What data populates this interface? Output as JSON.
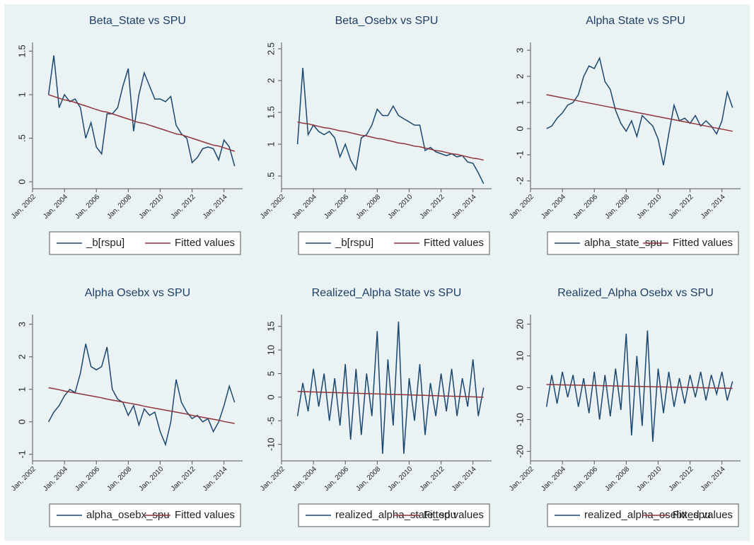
{
  "chart_data": [
    {
      "type": "line",
      "title": "Beta_State vs SPU",
      "x": [
        "2003-01",
        "2003-05",
        "2003-09",
        "2004-01",
        "2004-05",
        "2004-09",
        "2005-01",
        "2005-05",
        "2005-09",
        "2006-01",
        "2006-05",
        "2006-09",
        "2007-01",
        "2007-05",
        "2007-09",
        "2008-01",
        "2008-05",
        "2008-09",
        "2009-01",
        "2009-05",
        "2009-09",
        "2010-01",
        "2010-05",
        "2010-09",
        "2011-01",
        "2011-05",
        "2011-09",
        "2012-01",
        "2012-05",
        "2012-09",
        "2013-01",
        "2013-05",
        "2013-09",
        "2014-01",
        "2014-05",
        "2014-09"
      ],
      "series": [
        {
          "name": "_b[rspu]",
          "color": "#1a476f",
          "values": [
            1.0,
            1.45,
            0.85,
            1.0,
            0.92,
            0.95,
            0.85,
            0.5,
            0.68,
            0.4,
            0.32,
            0.78,
            0.78,
            0.85,
            1.1,
            1.3,
            0.58,
            1.0,
            1.25,
            1.1,
            0.95,
            0.95,
            0.92,
            0.98,
            0.65,
            0.55,
            0.5,
            0.22,
            0.28,
            0.38,
            0.4,
            0.38,
            0.25,
            0.48,
            0.4,
            0.18
          ]
        },
        {
          "name": "Fitted values",
          "color": "#90353b",
          "values": [
            1.0,
            0.98,
            0.96,
            0.94,
            0.93,
            0.91,
            0.89,
            0.87,
            0.85,
            0.83,
            0.81,
            0.8,
            0.78,
            0.76,
            0.74,
            0.72,
            0.7,
            0.68,
            0.67,
            0.65,
            0.63,
            0.61,
            0.59,
            0.57,
            0.55,
            0.54,
            0.52,
            0.5,
            0.48,
            0.46,
            0.44,
            0.42,
            0.41,
            0.39,
            0.37,
            0.35
          ]
        }
      ],
      "xlim": [
        "2002-01",
        "2015-03"
      ],
      "xticks": [
        {
          "value": "2002-01",
          "label": "Jan, 2002"
        },
        {
          "value": "2004-01",
          "label": "Jan, 2004"
        },
        {
          "value": "2006-01",
          "label": "Jan, 2006"
        },
        {
          "value": "2008-01",
          "label": "Jan, 2008"
        },
        {
          "value": "2010-01",
          "label": "Jan, 2010"
        },
        {
          "value": "2012-01",
          "label": "Jan, 2012"
        },
        {
          "value": "2014-01",
          "label": "Jan, 2014"
        }
      ],
      "ylim": [
        -0.08,
        1.6
      ],
      "yticks": [
        0,
        {
          "value": 0.5,
          "label": ".5"
        },
        1,
        1.5
      ],
      "grid": false,
      "legend": "bottom"
    },
    {
      "type": "line",
      "title": "Beta_Osebx vs SPU",
      "x": [
        "2003-01",
        "2003-05",
        "2003-09",
        "2004-01",
        "2004-05",
        "2004-09",
        "2005-01",
        "2005-05",
        "2005-09",
        "2006-01",
        "2006-05",
        "2006-09",
        "2007-01",
        "2007-05",
        "2007-09",
        "2008-01",
        "2008-05",
        "2008-09",
        "2009-01",
        "2009-05",
        "2009-09",
        "2010-01",
        "2010-05",
        "2010-09",
        "2011-01",
        "2011-05",
        "2011-09",
        "2012-01",
        "2012-05",
        "2012-09",
        "2013-01",
        "2013-05",
        "2013-09",
        "2014-01",
        "2014-05",
        "2014-09"
      ],
      "series": [
        {
          "name": "_b[rspu]",
          "color": "#1a476f",
          "values": [
            1.0,
            2.2,
            1.15,
            1.3,
            1.2,
            1.15,
            1.2,
            1.1,
            0.8,
            1.0,
            0.75,
            0.6,
            1.1,
            1.15,
            1.3,
            1.55,
            1.45,
            1.45,
            1.6,
            1.45,
            1.4,
            1.35,
            1.3,
            1.3,
            0.9,
            0.95,
            0.88,
            0.85,
            0.82,
            0.85,
            0.8,
            0.82,
            0.72,
            0.7,
            0.55,
            0.38
          ]
        },
        {
          "name": "Fitted values",
          "color": "#90353b",
          "values": [
            1.35,
            1.33,
            1.32,
            1.3,
            1.28,
            1.26,
            1.25,
            1.23,
            1.21,
            1.2,
            1.18,
            1.16,
            1.14,
            1.13,
            1.11,
            1.09,
            1.08,
            1.06,
            1.04,
            1.02,
            1.01,
            0.99,
            0.97,
            0.96,
            0.94,
            0.92,
            0.9,
            0.89,
            0.87,
            0.85,
            0.84,
            0.82,
            0.8,
            0.78,
            0.77,
            0.75
          ]
        }
      ],
      "xlim": [
        "2002-01",
        "2015-03"
      ],
      "xticks": [
        {
          "value": "2002-01",
          "label": "Jan, 2002"
        },
        {
          "value": "2004-01",
          "label": "Jan, 2004"
        },
        {
          "value": "2006-01",
          "label": "Jan, 2006"
        },
        {
          "value": "2008-01",
          "label": "Jan, 2008"
        },
        {
          "value": "2010-01",
          "label": "Jan, 2010"
        },
        {
          "value": "2012-01",
          "label": "Jan, 2012"
        },
        {
          "value": "2014-01",
          "label": "Jan, 2014"
        }
      ],
      "ylim": [
        0.3,
        2.6
      ],
      "yticks": [
        {
          "value": 0.5,
          "label": ".5"
        },
        1,
        1.5,
        2,
        2.5
      ],
      "grid": false,
      "legend": "bottom"
    },
    {
      "type": "line",
      "title": "Alpha State vs SPU",
      "x": [
        "2003-01",
        "2003-05",
        "2003-09",
        "2004-01",
        "2004-05",
        "2004-09",
        "2005-01",
        "2005-05",
        "2005-09",
        "2006-01",
        "2006-05",
        "2006-09",
        "2007-01",
        "2007-05",
        "2007-09",
        "2008-01",
        "2008-05",
        "2008-09",
        "2009-01",
        "2009-05",
        "2009-09",
        "2010-01",
        "2010-05",
        "2010-09",
        "2011-01",
        "2011-05",
        "2011-09",
        "2012-01",
        "2012-05",
        "2012-09",
        "2013-01",
        "2013-05",
        "2013-09",
        "2014-01",
        "2014-05",
        "2014-09"
      ],
      "series": [
        {
          "name": "alpha_state_spu",
          "color": "#1a476f",
          "values": [
            0,
            0.1,
            0.4,
            0.6,
            0.9,
            1.0,
            1.3,
            2.0,
            2.4,
            2.3,
            2.7,
            1.8,
            1.5,
            0.7,
            0.2,
            -0.1,
            0.3,
            -0.3,
            0.5,
            0.3,
            0.1,
            -0.4,
            -1.4,
            -0.2,
            0.9,
            0.3,
            0.4,
            0.2,
            0.5,
            0.1,
            0.3,
            0.1,
            -0.2,
            0.3,
            1.4,
            0.8
          ]
        },
        {
          "name": "Fitted values",
          "color": "#90353b",
          "values": [
            1.3,
            1.26,
            1.22,
            1.18,
            1.14,
            1.1,
            1.06,
            1.02,
            0.98,
            0.94,
            0.9,
            0.86,
            0.82,
            0.78,
            0.74,
            0.7,
            0.66,
            0.62,
            0.58,
            0.54,
            0.5,
            0.46,
            0.42,
            0.38,
            0.34,
            0.3,
            0.26,
            0.22,
            0.18,
            0.14,
            0.1,
            0.06,
            0.02,
            -0.02,
            -0.06,
            -0.1
          ]
        }
      ],
      "xlim": [
        "2002-01",
        "2015-03"
      ],
      "xticks": [
        {
          "value": "2002-01",
          "label": "Jan, 2002"
        },
        {
          "value": "2004-01",
          "label": "Jan, 2004"
        },
        {
          "value": "2006-01",
          "label": "Jan, 2006"
        },
        {
          "value": "2008-01",
          "label": "Jan, 2008"
        },
        {
          "value": "2010-01",
          "label": "Jan, 2010"
        },
        {
          "value": "2012-01",
          "label": "Jan, 2012"
        },
        {
          "value": "2014-01",
          "label": "Jan, 2014"
        }
      ],
      "ylim": [
        -2.3,
        3.3
      ],
      "yticks": [
        -2,
        -1,
        0,
        1,
        2,
        3
      ],
      "grid": false,
      "legend": "bottom"
    },
    {
      "type": "line",
      "title": "Alpha Osebx vs SPU",
      "x": [
        "2003-01",
        "2003-05",
        "2003-09",
        "2004-01",
        "2004-05",
        "2004-09",
        "2005-01",
        "2005-05",
        "2005-09",
        "2006-01",
        "2006-05",
        "2006-09",
        "2007-01",
        "2007-05",
        "2007-09",
        "2008-01",
        "2008-05",
        "2008-09",
        "2009-01",
        "2009-05",
        "2009-09",
        "2010-01",
        "2010-05",
        "2010-09",
        "2011-01",
        "2011-05",
        "2011-09",
        "2012-01",
        "2012-05",
        "2012-09",
        "2013-01",
        "2013-05",
        "2013-09",
        "2014-01",
        "2014-05",
        "2014-09"
      ],
      "series": [
        {
          "name": "alpha_osebx_spu",
          "color": "#1a476f",
          "values": [
            0,
            0.3,
            0.5,
            0.8,
            1.0,
            0.9,
            1.5,
            2.4,
            1.7,
            1.6,
            1.7,
            2.3,
            1.0,
            0.7,
            0.6,
            0.2,
            0.5,
            -0.1,
            0.4,
            0.2,
            0.3,
            -0.3,
            -0.7,
            0.0,
            1.3,
            0.6,
            0.3,
            0.1,
            0.2,
            0.0,
            0.1,
            -0.3,
            0.0,
            0.5,
            1.1,
            0.6
          ]
        },
        {
          "name": "Fitted values",
          "color": "#90353b",
          "values": [
            1.05,
            1.02,
            0.99,
            0.95,
            0.92,
            0.89,
            0.86,
            0.83,
            0.8,
            0.77,
            0.74,
            0.7,
            0.67,
            0.64,
            0.61,
            0.58,
            0.55,
            0.52,
            0.48,
            0.45,
            0.42,
            0.39,
            0.36,
            0.33,
            0.3,
            0.27,
            0.24,
            0.2,
            0.17,
            0.14,
            0.11,
            0.08,
            0.05,
            0.01,
            -0.02,
            -0.05
          ]
        }
      ],
      "xlim": [
        "2002-01",
        "2015-03"
      ],
      "xticks": [
        {
          "value": "2002-01",
          "label": "Jan, 2002"
        },
        {
          "value": "2004-01",
          "label": "Jan, 2004"
        },
        {
          "value": "2006-01",
          "label": "Jan, 2006"
        },
        {
          "value": "2008-01",
          "label": "Jan, 2008"
        },
        {
          "value": "2010-01",
          "label": "Jan, 2010"
        },
        {
          "value": "2012-01",
          "label": "Jan, 2012"
        },
        {
          "value": "2014-01",
          "label": "Jan, 2014"
        }
      ],
      "ylim": [
        -1.2,
        3.3
      ],
      "yticks": [
        -1,
        0,
        1,
        2,
        3
      ],
      "grid": false,
      "legend": "bottom"
    },
    {
      "type": "line",
      "title": "Realized_Alpha State vs SPU",
      "x": [
        "2003-01",
        "2003-05",
        "2003-09",
        "2004-01",
        "2004-05",
        "2004-09",
        "2005-01",
        "2005-05",
        "2005-09",
        "2006-01",
        "2006-05",
        "2006-09",
        "2007-01",
        "2007-05",
        "2007-09",
        "2008-01",
        "2008-05",
        "2008-09",
        "2009-01",
        "2009-05",
        "2009-09",
        "2010-01",
        "2010-05",
        "2010-09",
        "2011-01",
        "2011-05",
        "2011-09",
        "2012-01",
        "2012-05",
        "2012-09",
        "2013-01",
        "2013-05",
        "2013-09",
        "2014-01",
        "2014-05",
        "2014-09"
      ],
      "series": [
        {
          "name": "realized_alpha_state_spu",
          "color": "#1a476f",
          "values": [
            -4,
            3,
            -3,
            6,
            -2,
            5,
            -5,
            4,
            -6,
            7,
            -9,
            6,
            -8,
            5,
            -4,
            14,
            -12,
            8,
            -6,
            16,
            -12,
            4,
            -5,
            7,
            -8,
            3,
            -4,
            5,
            -3,
            6,
            -4,
            4,
            -2,
            8,
            -4,
            2
          ]
        },
        {
          "name": "Fitted values",
          "color": "#90353b",
          "values": [
            1.2,
            1.17,
            1.13,
            1.1,
            1.06,
            1.03,
            0.99,
            0.96,
            0.93,
            0.89,
            0.86,
            0.82,
            0.79,
            0.75,
            0.72,
            0.69,
            0.65,
            0.62,
            0.58,
            0.55,
            0.51,
            0.48,
            0.45,
            0.41,
            0.38,
            0.34,
            0.31,
            0.27,
            0.24,
            0.21,
            0.17,
            0.14,
            0.1,
            0.07,
            0.03,
            0.0
          ]
        }
      ],
      "xlim": [
        "2002-01",
        "2015-03"
      ],
      "xticks": [
        {
          "value": "2002-01",
          "label": "Jan, 2002"
        },
        {
          "value": "2004-01",
          "label": "Jan, 2004"
        },
        {
          "value": "2006-01",
          "label": "Jan, 2006"
        },
        {
          "value": "2008-01",
          "label": "Jan, 2008"
        },
        {
          "value": "2010-01",
          "label": "Jan, 2010"
        },
        {
          "value": "2012-01",
          "label": "Jan, 2012"
        },
        {
          "value": "2014-01",
          "label": "Jan, 2014"
        }
      ],
      "ylim": [
        -13.5,
        17.5
      ],
      "yticks": [
        -10,
        -5,
        0,
        5,
        10,
        15
      ],
      "grid": false,
      "legend": "bottom"
    },
    {
      "type": "line",
      "title": "Realized_Alpha Osebx vs SPU",
      "x": [
        "2003-01",
        "2003-05",
        "2003-09",
        "2004-01",
        "2004-05",
        "2004-09",
        "2005-01",
        "2005-05",
        "2005-09",
        "2006-01",
        "2006-05",
        "2006-09",
        "2007-01",
        "2007-05",
        "2007-09",
        "2008-01",
        "2008-05",
        "2008-09",
        "2009-01",
        "2009-05",
        "2009-09",
        "2010-01",
        "2010-05",
        "2010-09",
        "2011-01",
        "2011-05",
        "2011-09",
        "2012-01",
        "2012-05",
        "2012-09",
        "2013-01",
        "2013-05",
        "2013-09",
        "2014-01",
        "2014-05",
        "2014-09"
      ],
      "series": [
        {
          "name": "realized_alpha_osebx_spu",
          "color": "#1a476f",
          "values": [
            -6,
            4,
            -5,
            5,
            -3,
            4,
            -6,
            3,
            -8,
            5,
            -10,
            4,
            -9,
            6,
            -7,
            17,
            -15,
            10,
            -12,
            18,
            -17,
            6,
            -8,
            5,
            -6,
            3,
            -5,
            4,
            -3,
            5,
            -4,
            4,
            -2,
            5,
            -4,
            2
          ]
        },
        {
          "name": "Fitted values",
          "color": "#90353b",
          "values": [
            1.0,
            0.97,
            0.93,
            0.9,
            0.86,
            0.83,
            0.79,
            0.76,
            0.73,
            0.69,
            0.66,
            0.62,
            0.59,
            0.55,
            0.52,
            0.49,
            0.45,
            0.42,
            0.38,
            0.35,
            0.31,
            0.28,
            0.25,
            0.21,
            0.18,
            0.14,
            0.11,
            0.07,
            0.04,
            0.01,
            -0.03,
            -0.06,
            -0.1,
            -0.13,
            -0.17,
            -0.2
          ]
        }
      ],
      "xlim": [
        "2002-01",
        "2015-03"
      ],
      "xticks": [
        {
          "value": "2002-01",
          "label": "Jan, 2002"
        },
        {
          "value": "2004-01",
          "label": "Jan, 2004"
        },
        {
          "value": "2006-01",
          "label": "Jan, 2006"
        },
        {
          "value": "2008-01",
          "label": "Jan, 2008"
        },
        {
          "value": "2010-01",
          "label": "Jan, 2010"
        },
        {
          "value": "2012-01",
          "label": "Jan, 2012"
        },
        {
          "value": "2014-01",
          "label": "Jan, 2014"
        }
      ],
      "ylim": [
        -23,
        23
      ],
      "yticks": [
        -20,
        -10,
        0,
        10,
        20
      ],
      "grid": false,
      "legend": "bottom"
    }
  ]
}
